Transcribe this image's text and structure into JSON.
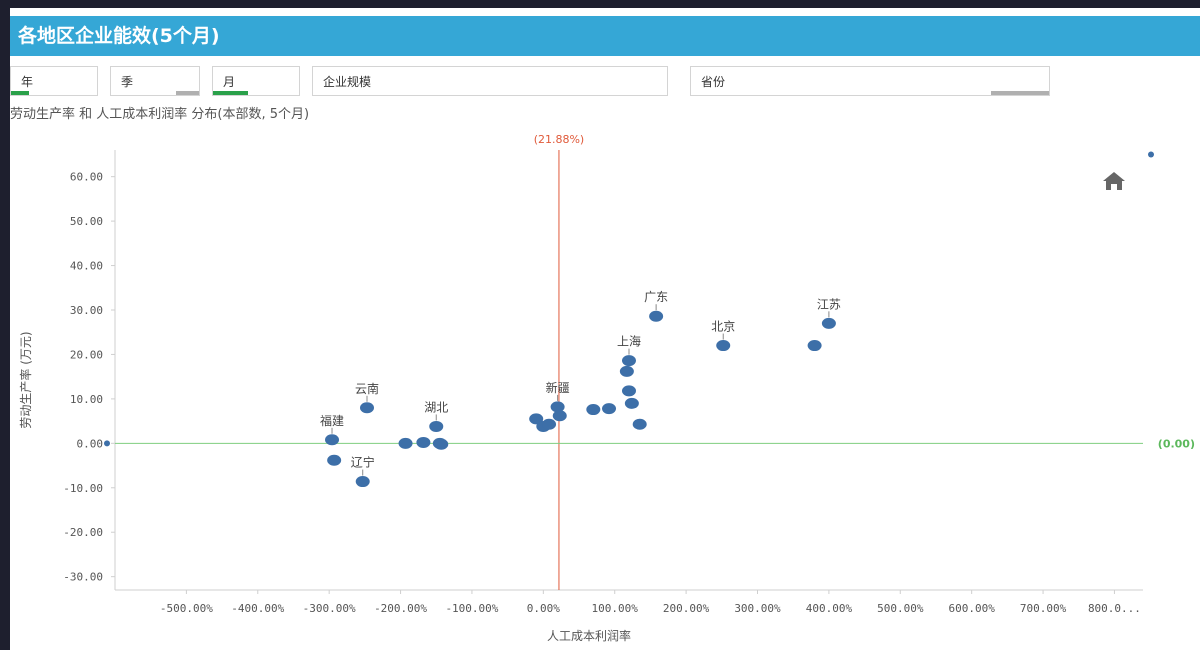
{
  "header": {
    "title": "各地区企业能效(5个月)"
  },
  "filters": [
    {
      "label": "年",
      "bar_color": "#2aa14a",
      "bar_fraction": 0.2
    },
    {
      "label": "季",
      "bar_color": "#b0b0b0",
      "bar_fraction": 0.25
    },
    {
      "label": "月",
      "bar_color": "#2aa14a",
      "bar_fraction": 0.4
    },
    {
      "label": "企业规模",
      "bar_color": "#b0b0b0",
      "bar_fraction": 0
    },
    {
      "label": "省份",
      "bar_color": "#b0b0b0",
      "bar_fraction": 0.16
    }
  ],
  "chart_data": {
    "type": "scatter",
    "subtitle": "劳动生产率 和 人工成本利润率 分布(本部数, 5个月)",
    "xlabel": "人工成本利润率",
    "ylabel": "劳动生产率 (万元)",
    "xlim": [
      -600,
      840
    ],
    "ylim": [
      -33,
      66
    ],
    "x_ticks": [
      "-500.00%",
      "-400.00%",
      "-300.00%",
      "-200.00%",
      "-100.00%",
      "0.00%",
      "100.00%",
      "200.00%",
      "300.00%",
      "400.00%",
      "500.00%",
      "600.00%",
      "700.00%",
      "800.0..."
    ],
    "x_tick_values": [
      -500,
      -400,
      -300,
      -200,
      -100,
      0,
      100,
      200,
      300,
      400,
      500,
      600,
      700,
      800
    ],
    "y_ticks": [
      "60.00",
      "50.00",
      "40.00",
      "30.00",
      "20.00",
      "10.00",
      "0.00",
      "-10.00",
      "-20.00",
      "-30.00"
    ],
    "y_tick_values": [
      60,
      50,
      40,
      30,
      20,
      10,
      0,
      -10,
      -20,
      -30
    ],
    "ref_x": {
      "value": 21.88,
      "label": "(21.88%)",
      "color": "#e05a3a"
    },
    "ref_y": {
      "value": 0,
      "label": "(0.00)",
      "color": "#7fce7f"
    },
    "point_color": "#3d6fa8",
    "points": [
      {
        "x": -296,
        "y": 0.8,
        "label": "福建"
      },
      {
        "x": -293,
        "y": -3.8,
        "label": ""
      },
      {
        "x": -253,
        "y": -8.6,
        "label": "辽宁"
      },
      {
        "x": -247,
        "y": 8.0,
        "label": "云南"
      },
      {
        "x": -193,
        "y": 0.0,
        "label": ""
      },
      {
        "x": -168,
        "y": 0.2,
        "label": ""
      },
      {
        "x": -150,
        "y": 3.8,
        "label": "湖北"
      },
      {
        "x": -145,
        "y": 0.0,
        "label": ""
      },
      {
        "x": -143,
        "y": -0.2,
        "label": ""
      },
      {
        "x": -10,
        "y": 5.5,
        "label": ""
      },
      {
        "x": 0,
        "y": 3.8,
        "label": ""
      },
      {
        "x": 8,
        "y": 4.3,
        "label": ""
      },
      {
        "x": 20,
        "y": 8.2,
        "label": "新疆"
      },
      {
        "x": 23,
        "y": 6.2,
        "label": ""
      },
      {
        "x": 70,
        "y": 7.6,
        "label": ""
      },
      {
        "x": 92,
        "y": 7.8,
        "label": ""
      },
      {
        "x": 117,
        "y": 16.2,
        "label": ""
      },
      {
        "x": 120,
        "y": 18.6,
        "label": "上海"
      },
      {
        "x": 120,
        "y": 11.8,
        "label": ""
      },
      {
        "x": 124,
        "y": 9.0,
        "label": ""
      },
      {
        "x": 135,
        "y": 4.3,
        "label": ""
      },
      {
        "x": 158,
        "y": 28.6,
        "label": "广东"
      },
      {
        "x": 252,
        "y": 22.0,
        "label": "北京"
      },
      {
        "x": 380,
        "y": 22.0,
        "label": ""
      },
      {
        "x": 400,
        "y": 27.0,
        "label": "江苏"
      }
    ],
    "outliers": [
      {
        "x": -600,
        "y": 0.0
      },
      {
        "x": 840,
        "y": 65.0
      }
    ]
  }
}
